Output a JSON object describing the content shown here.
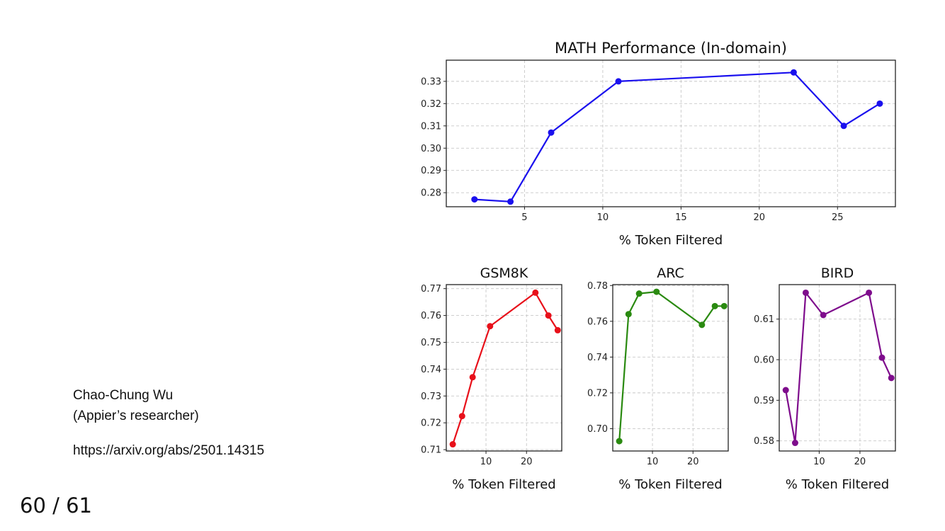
{
  "slide": {
    "author_name": "Chao-Chung Wu",
    "author_role": "(Appier’s researcher)",
    "link": "https://arxiv.org/abs/2501.14315",
    "page_number": "60 / 61"
  },
  "chart_data": [
    {
      "id": "math",
      "type": "line",
      "title": "MATH Performance (In-domain)",
      "xlabel": "% Token Filtered",
      "ylabel": "",
      "color": "#1a10ee",
      "grid": true,
      "xlim": [
        0,
        28.7
      ],
      "ylim": [
        0.2737,
        0.3395
      ],
      "xticks": [
        5,
        10,
        15,
        20,
        25
      ],
      "xtick_labels": [
        "5",
        "10",
        "15",
        "20",
        "25"
      ],
      "yticks": [
        0.28,
        0.29,
        0.3,
        0.31,
        0.32,
        0.33
      ],
      "ytick_labels": [
        "0.28",
        "0.29",
        "0.30",
        "0.31",
        "0.32",
        "0.33"
      ],
      "x": [
        1.8,
        4.1,
        6.7,
        11.0,
        22.2,
        25.4,
        27.7
      ],
      "y": [
        0.277,
        0.276,
        0.307,
        0.33,
        0.334,
        0.31,
        0.32
      ]
    },
    {
      "id": "gsm8k",
      "type": "line",
      "title": "GSM8K",
      "xlabel": "% Token Filtered",
      "ylabel": "",
      "color": "#e8101a",
      "grid": true,
      "xlim": [
        0.2,
        28.7
      ],
      "ylim": [
        0.7095,
        0.7715
      ],
      "xticks": [
        10,
        20
      ],
      "xtick_labels": [
        "10",
        "20"
      ],
      "yticks": [
        0.71,
        0.72,
        0.73,
        0.74,
        0.75,
        0.76,
        0.77
      ],
      "ytick_labels": [
        "0.71",
        "0.72",
        "0.73",
        "0.74",
        "0.75",
        "0.76",
        "0.77"
      ],
      "x": [
        1.8,
        4.1,
        6.7,
        11.0,
        22.2,
        25.4,
        27.7
      ],
      "y": [
        0.712,
        0.7225,
        0.737,
        0.756,
        0.7685,
        0.76,
        0.7545
      ]
    },
    {
      "id": "arc",
      "type": "line",
      "title": "ARC",
      "xlabel": "% Token Filtered",
      "ylabel": "",
      "color": "#2a8a10",
      "grid": true,
      "xlim": [
        0.2,
        28.7
      ],
      "ylim": [
        0.6875,
        0.7805
      ],
      "xticks": [
        10,
        20
      ],
      "xtick_labels": [
        "10",
        "20"
      ],
      "yticks": [
        0.7,
        0.72,
        0.74,
        0.76,
        0.78
      ],
      "ytick_labels": [
        "0.70",
        "0.72",
        "0.74",
        "0.76",
        "0.78"
      ],
      "x": [
        1.8,
        4.1,
        6.7,
        11.0,
        22.2,
        25.4,
        27.7
      ],
      "y": [
        0.693,
        0.764,
        0.7755,
        0.7765,
        0.758,
        0.7685,
        0.7685
      ]
    },
    {
      "id": "bird",
      "type": "line",
      "title": "BIRD",
      "xlabel": "% Token Filtered",
      "ylabel": "",
      "color": "#7e0c8c",
      "grid": true,
      "xlim": [
        0.2,
        28.7
      ],
      "ylim": [
        0.5775,
        0.6185
      ],
      "xticks": [
        10,
        20
      ],
      "xtick_labels": [
        "10",
        "20"
      ],
      "yticks": [
        0.58,
        0.59,
        0.6,
        0.61
      ],
      "ytick_labels": [
        "0.58",
        "0.59",
        "0.60",
        "0.61"
      ],
      "x": [
        1.8,
        4.1,
        6.7,
        11.0,
        22.2,
        25.4,
        27.7
      ],
      "y": [
        0.5925,
        0.5795,
        0.6165,
        0.611,
        0.6165,
        0.6005,
        0.5955
      ]
    }
  ]
}
